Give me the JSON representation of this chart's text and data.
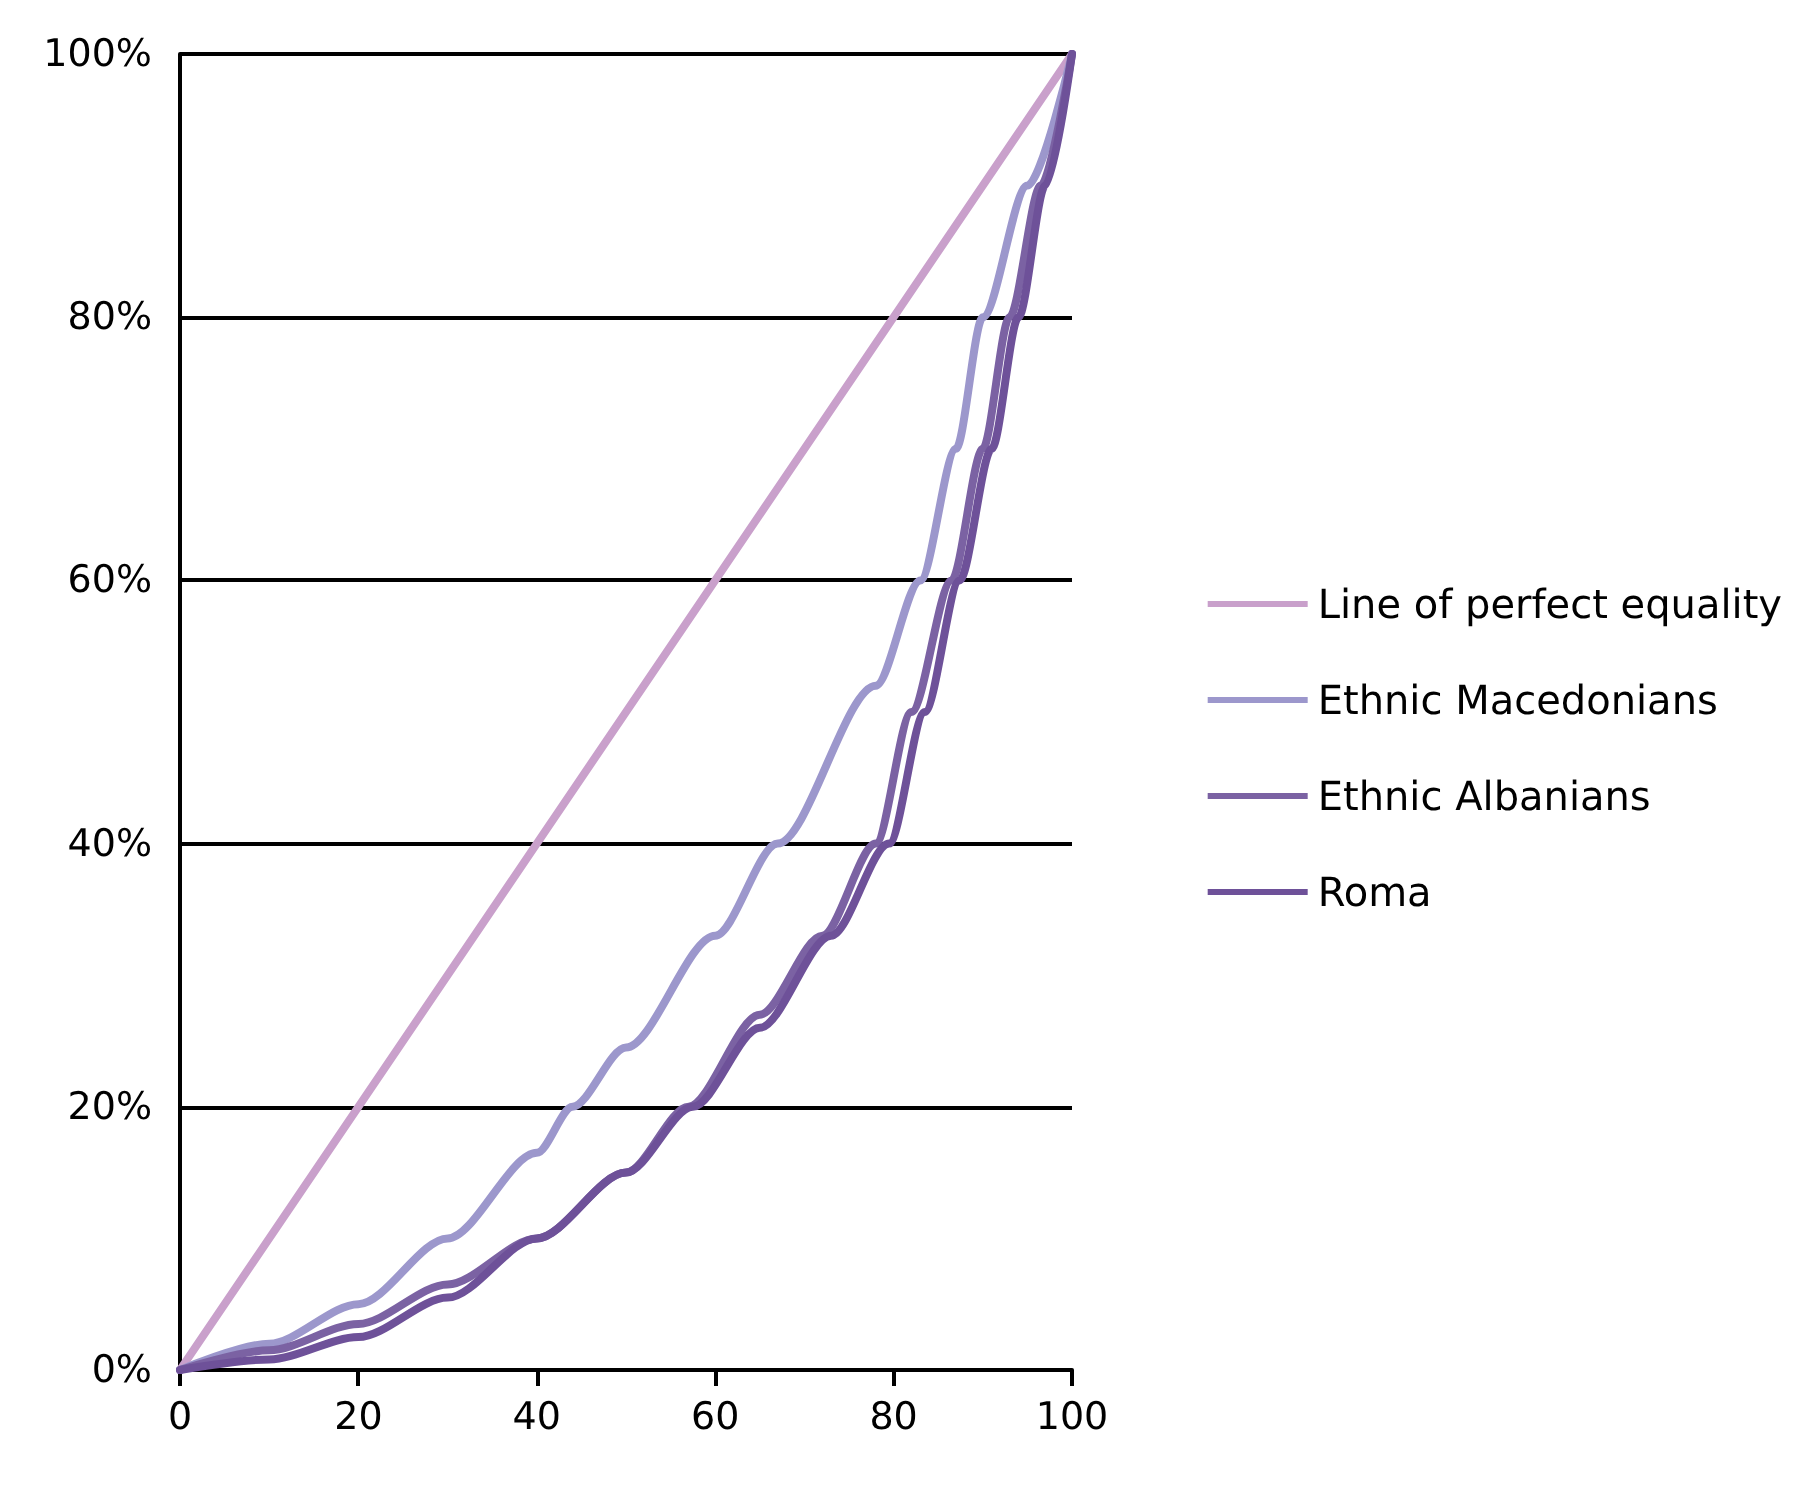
{
  "chart_data": {
    "type": "line",
    "xlim": [
      0,
      100
    ],
    "xticks": [
      0,
      20,
      40,
      60,
      80,
      100
    ],
    "ylim": [
      0,
      100
    ],
    "yticks": [
      {
        "value": 0,
        "label": "0%"
      },
      {
        "value": 20,
        "label": "20%"
      },
      {
        "value": 40,
        "label": "40%"
      },
      {
        "value": 60,
        "label": "60%"
      },
      {
        "value": 80,
        "label": "80%"
      },
      {
        "value": 100,
        "label": "100%"
      }
    ],
    "grid": "y",
    "legend": "right",
    "marker": "none",
    "line_style": "solid",
    "series": [
      {
        "name": "Line of perfect equality",
        "color": "#c9a0cb",
        "x": [
          0,
          100
        ],
        "values": [
          0,
          100
        ]
      },
      {
        "name": "Ethnic Macedonians",
        "color": "#9c97cc",
        "x": [
          0,
          10,
          20,
          30,
          40,
          44,
          50,
          60,
          67,
          78,
          83,
          87,
          90,
          95,
          100
        ],
        "values": [
          0,
          2,
          5,
          10,
          16.5,
          20,
          24.5,
          33,
          40,
          52,
          60,
          70,
          80,
          90,
          100
        ]
      },
      {
        "name": "Ethnic Albanians",
        "color": "#7b62a3",
        "x": [
          0,
          10,
          20,
          30,
          40,
          50,
          57,
          65,
          72,
          78,
          82,
          86.5,
          90,
          93,
          96.5,
          100
        ],
        "values": [
          0,
          1.5,
          3.5,
          6.5,
          10,
          15,
          20,
          27,
          33,
          40,
          50,
          60,
          70,
          80,
          90,
          100
        ]
      },
      {
        "name": "Roma",
        "color": "#6e5199",
        "x": [
          0,
          10,
          20,
          30,
          40,
          50,
          57.5,
          65,
          73,
          79.5,
          83.5,
          87.4,
          91,
          94,
          97,
          100
        ],
        "values": [
          0,
          0.8,
          2.5,
          5.5,
          10,
          15,
          20,
          26,
          33,
          40,
          50,
          60,
          70,
          80,
          90,
          100
        ]
      }
    ]
  }
}
